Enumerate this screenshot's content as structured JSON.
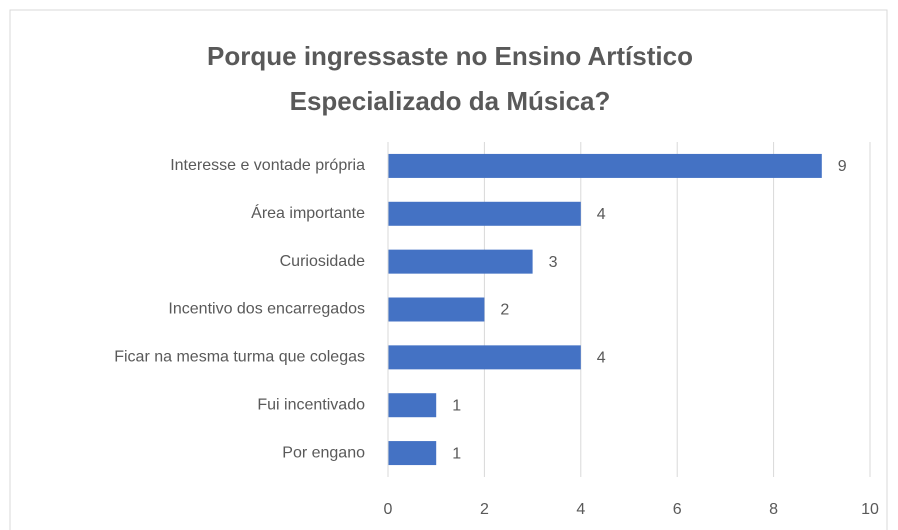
{
  "chart_data": {
    "type": "bar",
    "orientation": "horizontal",
    "title": "Porque ingressaste no Ensino Artístico Especializado da Música?",
    "categories": [
      "Interesse e vontade própria",
      "Área importante",
      "Curiosidade",
      "Incentivo dos encarregados",
      "Ficar na mesma turma que colegas",
      "Fui incentivado",
      "Por engano"
    ],
    "values": [
      9,
      4,
      3,
      2,
      4,
      1,
      1
    ],
    "color": "#4472c4",
    "xlim": [
      0,
      10
    ],
    "xticks": [
      0,
      2,
      4,
      6,
      8,
      10
    ],
    "grid": true
  }
}
